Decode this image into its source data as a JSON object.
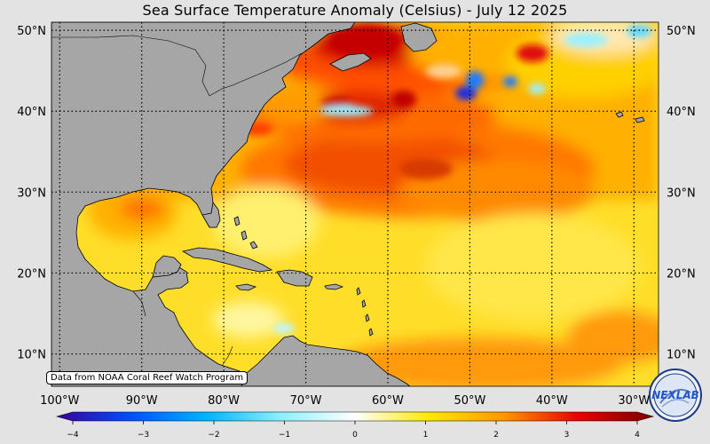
{
  "title": "Sea Surface Temperature Anomaly (Celsius) - July 12 2025",
  "longitude_labels": [
    "100°W",
    "90°W",
    "80°W",
    "70°W",
    "60°W",
    "50°W",
    "40°W",
    "30°W"
  ],
  "longitudes": [
    -100,
    -90,
    -80,
    -70,
    -60,
    -50,
    -40,
    -30
  ],
  "latitude_labels": [
    "50°N",
    "40°N",
    "30°N",
    "20°N",
    "10°N"
  ],
  "latitudes": [
    50,
    40,
    30,
    20,
    10
  ],
  "map_extent": {
    "lon_min": -101,
    "lon_max": -27,
    "lat_min": 6,
    "lat_max": 51
  },
  "colorbar": {
    "min": -4,
    "max": 4,
    "tick_labels": [
      "−4",
      "−3",
      "−2",
      "−1",
      "0",
      "1",
      "2",
      "3",
      "4"
    ],
    "tick_values": [
      -4,
      -3,
      -2,
      -1,
      0,
      1,
      2,
      3,
      4
    ],
    "colors": [
      "#3a0096",
      "#0050ff",
      "#00b4ff",
      "#8cf0ff",
      "#ffffff",
      "#ffe800",
      "#ff9600",
      "#e60000",
      "#7a0000"
    ]
  },
  "credit": "Data from NOAA Coral Reef Watch Program",
  "logo_text": "NEXLAB",
  "colors": {
    "land": "#a6a6a6",
    "background": "#e3e3e3",
    "ocean_base": "#ffdd22",
    "warm": "#ff5a00",
    "hot": "#d60000",
    "cool": "#9cf0ff",
    "cold": "#1a2be0"
  }
}
